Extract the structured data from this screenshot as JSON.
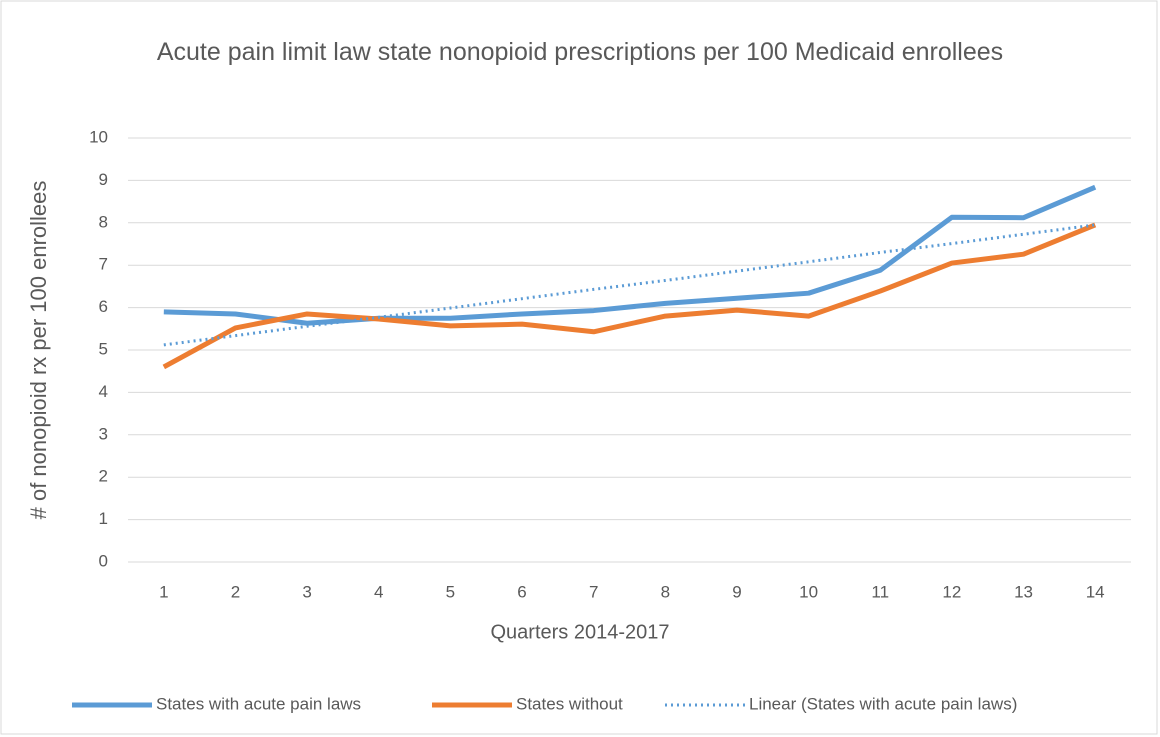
{
  "chart_data": {
    "type": "line",
    "title": "Acute pain limit law state nonopioid prescriptions per 100 Medicaid enrollees",
    "x_label": "Quarters 2014-2017",
    "y_label": "# of nonopioid rx per 100 enrollees",
    "categories": [
      "1",
      "2",
      "3",
      "4",
      "5",
      "6",
      "7",
      "8",
      "9",
      "10",
      "11",
      "12",
      "13",
      "14"
    ],
    "series": [
      {
        "name": "States with acute pain laws",
        "color": "#5b9bd5",
        "style": "solid",
        "values": [
          5.9,
          5.85,
          5.63,
          5.75,
          5.75,
          5.85,
          5.93,
          6.1,
          6.22,
          6.34,
          6.88,
          8.13,
          8.12,
          8.84
        ]
      },
      {
        "name": "States without",
        "color": "#ed7d31",
        "style": "solid",
        "values": [
          4.6,
          5.52,
          5.85,
          5.73,
          5.57,
          5.61,
          5.43,
          5.8,
          5.94,
          5.8,
          6.39,
          7.05,
          7.26,
          7.95
        ]
      },
      {
        "name": "Linear (States with acute pain laws)",
        "color": "#5b9bd5",
        "style": "dotted",
        "values": [
          5.12,
          5.34,
          5.56,
          5.77,
          5.99,
          6.21,
          6.43,
          6.64,
          6.86,
          7.08,
          7.3,
          7.51,
          7.73,
          7.95
        ]
      }
    ],
    "ylim": [
      0,
      10
    ],
    "yticks": [
      0,
      1,
      2,
      3,
      4,
      5,
      6,
      7,
      8,
      9,
      10
    ],
    "grid": true,
    "legend": "bottom"
  }
}
